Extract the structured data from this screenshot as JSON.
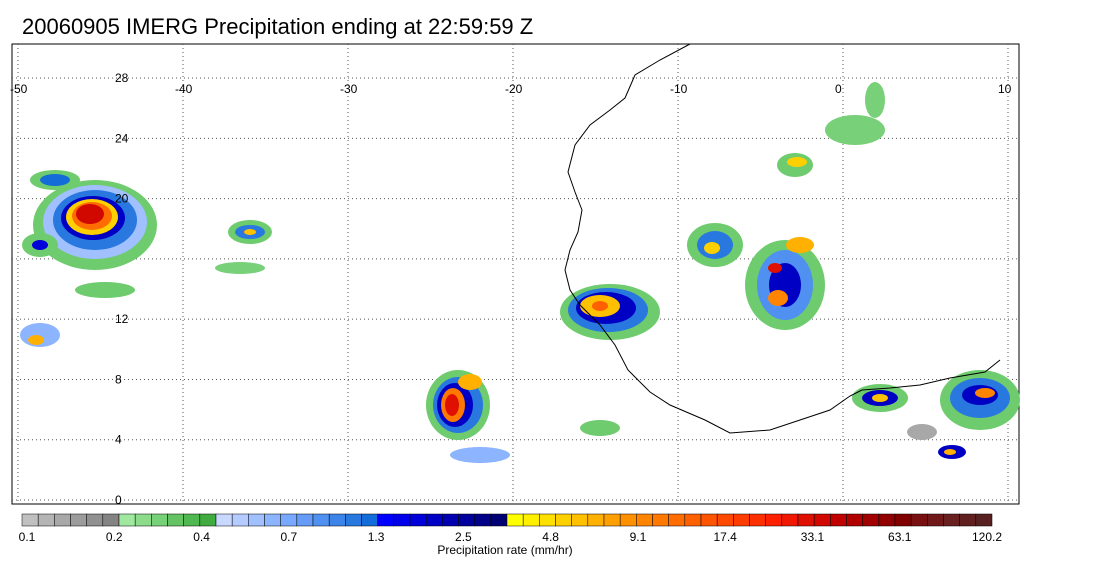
{
  "title": "20060905 IMERG Precipitation ending at 22:59:59 Z",
  "map": {
    "lon_range": [
      -50,
      10
    ],
    "lat_range": [
      -1,
      30
    ],
    "lon_ticks": [
      "-50",
      "-40",
      "-30",
      "-20",
      "-10",
      "0",
      "10"
    ],
    "lat_ticks": [
      "28",
      "24",
      "20",
      "12",
      "8",
      "4",
      "0"
    ],
    "gridlines": true,
    "coastline_color": "#000000"
  },
  "colorbar": {
    "title": "Precipitation rate (mm/hr)",
    "tick_labels": [
      "0.1",
      "0.2",
      "0.4",
      "0.7",
      "1.3",
      "2.5",
      "4.8",
      "9.1",
      "17.4",
      "33.1",
      "63.1",
      "120.2"
    ],
    "colors": [
      "#c0c0c0",
      "#b4b4b4",
      "#a8a8a8",
      "#9c9c9c",
      "#909090",
      "#848484",
      "#a0e8a0",
      "#8cdc8c",
      "#78d078",
      "#64c464",
      "#50b850",
      "#40ac40",
      "#c8d8ff",
      "#b4ccff",
      "#a0c0ff",
      "#8cb4ff",
      "#78a8ff",
      "#649cf8",
      "#5090f0",
      "#3c84e8",
      "#2878e0",
      "#146cd8",
      "#0000ff",
      "#0000ec",
      "#0000d8",
      "#0000c4",
      "#0000b0",
      "#00009c",
      "#000088",
      "#000074",
      "#ffff00",
      "#fff000",
      "#ffe000",
      "#ffd000",
      "#ffc000",
      "#ffb000",
      "#ffa000",
      "#ff9000",
      "#ff8400",
      "#ff7800",
      "#ff6c00",
      "#ff6000",
      "#ff5400",
      "#ff4800",
      "#ff3c00",
      "#ff3000",
      "#ff2000",
      "#f01800",
      "#e01000",
      "#d00800",
      "#c00000",
      "#b00000",
      "#a00000",
      "#900000",
      "#800000",
      "#781010",
      "#701818",
      "#682020",
      "#602020",
      "#582020"
    ]
  }
}
